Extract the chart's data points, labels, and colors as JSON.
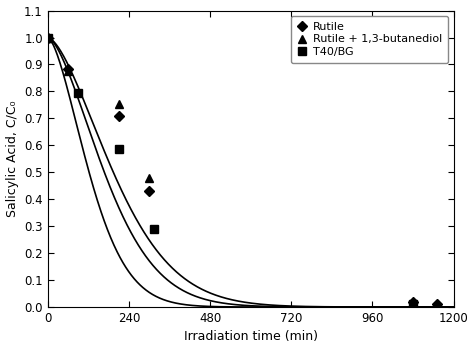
{
  "title": "",
  "xlabel": "Irradiation time (min)",
  "ylabel": "Salicylic Acid, C/C₀",
  "xlim": [
    0,
    1200
  ],
  "ylim": [
    0,
    1.1
  ],
  "xticks": [
    0,
    240,
    480,
    720,
    960,
    1200
  ],
  "yticks": [
    0.0,
    0.1,
    0.2,
    0.3,
    0.4,
    0.5,
    0.6,
    0.7,
    0.8,
    0.9,
    1.0,
    1.1
  ],
  "series": [
    {
      "label": "Rutile",
      "marker": "D",
      "markersize": 5,
      "color": "#000000",
      "x": [
        0,
        60,
        210,
        300,
        1080,
        1150
      ],
      "y": [
        1.0,
        0.885,
        0.71,
        0.43,
        0.02,
        0.01
      ],
      "k": 0.00475,
      "n": 1.6
    },
    {
      "label": "Rutile + 1,3-butanediol",
      "marker": "^",
      "markersize": 6,
      "color": "#000000",
      "x": [
        0,
        60,
        210,
        300,
        1080,
        1150
      ],
      "y": [
        1.0,
        0.875,
        0.755,
        0.48,
        0.015,
        0.01
      ],
      "k": 0.0041,
      "n": 1.6
    },
    {
      "label": "T40/BG",
      "marker": "s",
      "markersize": 6,
      "color": "#000000",
      "x": [
        0,
        90,
        210,
        315,
        1080
      ],
      "y": [
        1.0,
        0.795,
        0.585,
        0.29,
        0.01
      ],
      "k": 0.0065,
      "n": 1.6
    }
  ],
  "legend_loc": "upper right",
  "figure_color": "#ffffff",
  "line_color": "#000000",
  "line_width": 1.2
}
